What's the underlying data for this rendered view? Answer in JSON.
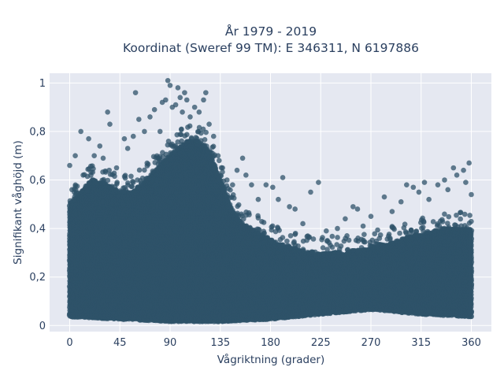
{
  "chart_data": {
    "type": "scatter",
    "title_line1": "År 1979 - 2019",
    "title_line2": "Koordinat (Sweref 99 TM): E 346311, N 6197886",
    "xlabel": "Vågriktning (grader)",
    "ylabel": "Signifikant våghöjd (m)",
    "xlim": [
      -18,
      378
    ],
    "ylim": [
      -0.025,
      1.04
    ],
    "x_ticks": [
      0,
      45,
      90,
      135,
      180,
      225,
      270,
      315,
      360
    ],
    "x_tick_labels": [
      "0",
      "45",
      "90",
      "135",
      "180",
      "225",
      "270",
      "315",
      "360"
    ],
    "y_ticks": [
      0,
      0.2,
      0.4,
      0.6,
      0.8,
      1
    ],
    "y_tick_labels": [
      "0",
      "0,2",
      "0,4",
      "0,6",
      "0,8",
      "1"
    ],
    "grid": true,
    "marker_color": "#2f5369",
    "plot_background": "#e5e8f1",
    "upper_envelope": [
      {
        "x": 0,
        "y": 0.5
      },
      {
        "x": 10,
        "y": 0.55
      },
      {
        "x": 20,
        "y": 0.6
      },
      {
        "x": 35,
        "y": 0.58
      },
      {
        "x": 45,
        "y": 0.55
      },
      {
        "x": 55,
        "y": 0.55
      },
      {
        "x": 65,
        "y": 0.58
      },
      {
        "x": 75,
        "y": 0.63
      },
      {
        "x": 85,
        "y": 0.68
      },
      {
        "x": 95,
        "y": 0.72
      },
      {
        "x": 105,
        "y": 0.76
      },
      {
        "x": 115,
        "y": 0.76
      },
      {
        "x": 125,
        "y": 0.72
      },
      {
        "x": 135,
        "y": 0.6
      },
      {
        "x": 145,
        "y": 0.48
      },
      {
        "x": 155,
        "y": 0.42
      },
      {
        "x": 170,
        "y": 0.38
      },
      {
        "x": 185,
        "y": 0.34
      },
      {
        "x": 200,
        "y": 0.32
      },
      {
        "x": 215,
        "y": 0.3
      },
      {
        "x": 230,
        "y": 0.3
      },
      {
        "x": 245,
        "y": 0.3
      },
      {
        "x": 260,
        "y": 0.31
      },
      {
        "x": 275,
        "y": 0.33
      },
      {
        "x": 290,
        "y": 0.34
      },
      {
        "x": 305,
        "y": 0.37
      },
      {
        "x": 320,
        "y": 0.38
      },
      {
        "x": 335,
        "y": 0.4
      },
      {
        "x": 350,
        "y": 0.4
      },
      {
        "x": 360,
        "y": 0.4
      }
    ],
    "lower_envelope": [
      {
        "x": 0,
        "y": 0.04
      },
      {
        "x": 45,
        "y": 0.03
      },
      {
        "x": 90,
        "y": 0.02
      },
      {
        "x": 135,
        "y": 0.02
      },
      {
        "x": 180,
        "y": 0.03
      },
      {
        "x": 225,
        "y": 0.05
      },
      {
        "x": 270,
        "y": 0.07
      },
      {
        "x": 315,
        "y": 0.05
      },
      {
        "x": 360,
        "y": 0.04
      }
    ],
    "outliers": [
      {
        "x": 0,
        "y": 0.66
      },
      {
        "x": 2,
        "y": 0.56
      },
      {
        "x": 5,
        "y": 0.7
      },
      {
        "x": 10,
        "y": 0.8
      },
      {
        "x": 17,
        "y": 0.77
      },
      {
        "x": 22,
        "y": 0.7
      },
      {
        "x": 27,
        "y": 0.74
      },
      {
        "x": 30,
        "y": 0.69
      },
      {
        "x": 34,
        "y": 0.88
      },
      {
        "x": 36,
        "y": 0.83
      },
      {
        "x": 42,
        "y": 0.65
      },
      {
        "x": 49,
        "y": 0.77
      },
      {
        "x": 52,
        "y": 0.73
      },
      {
        "x": 57,
        "y": 0.78
      },
      {
        "x": 59,
        "y": 0.96
      },
      {
        "x": 62,
        "y": 0.85
      },
      {
        "x": 67,
        "y": 0.8
      },
      {
        "x": 72,
        "y": 0.86
      },
      {
        "x": 76,
        "y": 0.89
      },
      {
        "x": 81,
        "y": 0.8
      },
      {
        "x": 83,
        "y": 0.92
      },
      {
        "x": 86,
        "y": 0.93
      },
      {
        "x": 88,
        "y": 1.01
      },
      {
        "x": 90,
        "y": 0.99
      },
      {
        "x": 92,
        "y": 0.9
      },
      {
        "x": 95,
        "y": 0.91
      },
      {
        "x": 97,
        "y": 0.98
      },
      {
        "x": 99,
        "y": 0.94
      },
      {
        "x": 101,
        "y": 0.88
      },
      {
        "x": 103,
        "y": 0.96
      },
      {
        "x": 105,
        "y": 0.93
      },
      {
        "x": 108,
        "y": 0.86
      },
      {
        "x": 112,
        "y": 0.9
      },
      {
        "x": 116,
        "y": 0.88
      },
      {
        "x": 120,
        "y": 0.93
      },
      {
        "x": 122,
        "y": 0.96
      },
      {
        "x": 125,
        "y": 0.83
      },
      {
        "x": 129,
        "y": 0.78
      },
      {
        "x": 133,
        "y": 0.7
      },
      {
        "x": 137,
        "y": 0.65
      },
      {
        "x": 141,
        "y": 0.6
      },
      {
        "x": 146,
        "y": 0.58
      },
      {
        "x": 150,
        "y": 0.64
      },
      {
        "x": 155,
        "y": 0.69
      },
      {
        "x": 158,
        "y": 0.62
      },
      {
        "x": 163,
        "y": 0.58
      },
      {
        "x": 169,
        "y": 0.52
      },
      {
        "x": 176,
        "y": 0.58
      },
      {
        "x": 182,
        "y": 0.57
      },
      {
        "x": 187,
        "y": 0.52
      },
      {
        "x": 191,
        "y": 0.61
      },
      {
        "x": 197,
        "y": 0.49
      },
      {
        "x": 202,
        "y": 0.48
      },
      {
        "x": 209,
        "y": 0.42
      },
      {
        "x": 216,
        "y": 0.55
      },
      {
        "x": 223,
        "y": 0.59
      },
      {
        "x": 230,
        "y": 0.39
      },
      {
        "x": 240,
        "y": 0.4
      },
      {
        "x": 247,
        "y": 0.44
      },
      {
        "x": 254,
        "y": 0.49
      },
      {
        "x": 258,
        "y": 0.48
      },
      {
        "x": 263,
        "y": 0.41
      },
      {
        "x": 270,
        "y": 0.45
      },
      {
        "x": 282,
        "y": 0.53
      },
      {
        "x": 289,
        "y": 0.47
      },
      {
        "x": 297,
        "y": 0.51
      },
      {
        "x": 302,
        "y": 0.58
      },
      {
        "x": 308,
        "y": 0.57
      },
      {
        "x": 313,
        "y": 0.55
      },
      {
        "x": 318,
        "y": 0.59
      },
      {
        "x": 322,
        "y": 0.52
      },
      {
        "x": 330,
        "y": 0.58
      },
      {
        "x": 336,
        "y": 0.6
      },
      {
        "x": 339,
        "y": 0.56
      },
      {
        "x": 344,
        "y": 0.65
      },
      {
        "x": 347,
        "y": 0.62
      },
      {
        "x": 353,
        "y": 0.64
      },
      {
        "x": 355,
        "y": 0.59
      },
      {
        "x": 358,
        "y": 0.67
      },
      {
        "x": 360,
        "y": 0.54
      }
    ]
  }
}
